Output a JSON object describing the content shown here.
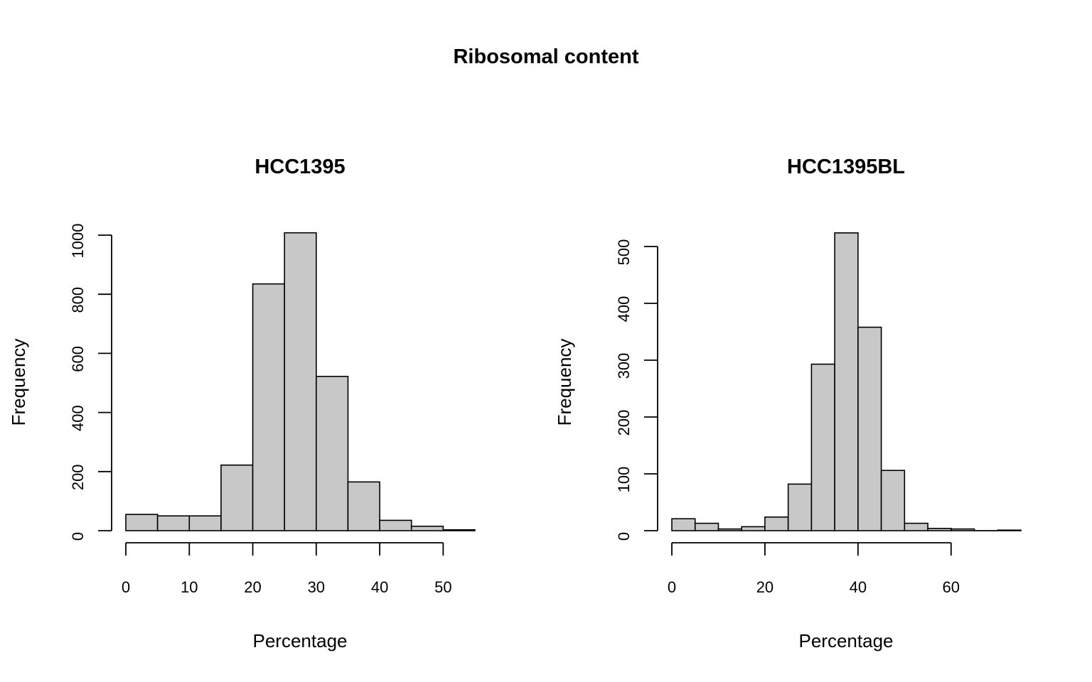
{
  "main_title": "Ribosomal content",
  "chart_data": [
    {
      "type": "bar",
      "title": "HCC1395",
      "xlabel": "Percentage",
      "ylabel": "Frequency",
      "bin_edges": [
        0,
        5,
        10,
        15,
        20,
        25,
        30,
        35,
        40,
        45,
        50,
        55
      ],
      "values": [
        55,
        50,
        50,
        222,
        835,
        1008,
        522,
        165,
        35,
        15,
        3
      ],
      "xlim": [
        0,
        55
      ],
      "ylim": [
        0,
        1000
      ],
      "x_ticks": [
        0,
        10,
        20,
        30,
        40,
        50
      ],
      "y_ticks": [
        0,
        200,
        400,
        600,
        800,
        1000
      ],
      "grid": false,
      "bar_color": "#c8c8c8"
    },
    {
      "type": "bar",
      "title": "HCC1395BL",
      "xlabel": "Percentage",
      "ylabel": "Frequency",
      "bin_edges": [
        0,
        5,
        10,
        15,
        20,
        25,
        30,
        35,
        40,
        45,
        50,
        55,
        60,
        65,
        70,
        75
      ],
      "values": [
        21,
        13,
        3,
        7,
        24,
        82,
        293,
        524,
        358,
        106,
        13,
        4,
        3,
        0,
        1
      ],
      "xlim": [
        0,
        75
      ],
      "ylim": [
        0,
        500
      ],
      "x_ticks": [
        0,
        20,
        40,
        60
      ],
      "y_ticks": [
        0,
        100,
        200,
        300,
        400,
        500
      ],
      "grid": false,
      "bar_color": "#c8c8c8"
    }
  ]
}
